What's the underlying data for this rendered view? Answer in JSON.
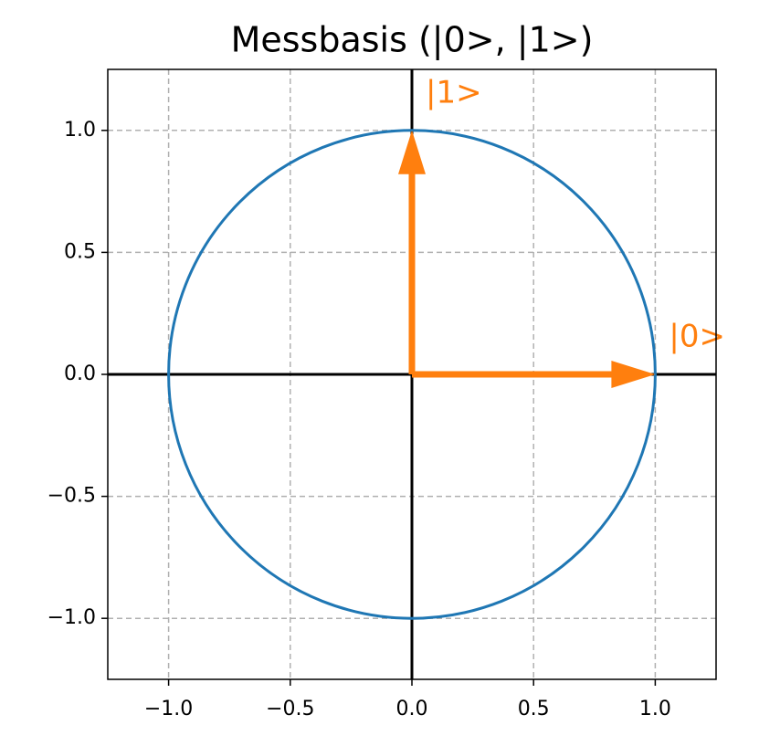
{
  "chart_data": {
    "type": "vector",
    "title": "Messbasis (|0>, |1>)",
    "circle": {
      "radius": 1,
      "color": "#1f77b4"
    },
    "vectors": [
      {
        "name": "|0>",
        "x": 1,
        "y": 0,
        "color": "#ff7f0e"
      },
      {
        "name": "|1>",
        "x": 0,
        "y": 1,
        "color": "#ff7f0e"
      }
    ],
    "xlim": [
      -1.25,
      1.25
    ],
    "ylim": [
      -1.25,
      1.25
    ],
    "xticks": [
      {
        "value": -1.0,
        "label": "−1.0"
      },
      {
        "value": -0.5,
        "label": "−0.5"
      },
      {
        "value": 0.0,
        "label": "0.0"
      },
      0.5,
      {
        "value": 1.0,
        "label": "1.0"
      }
    ],
    "yticks": [
      {
        "value": -1.0,
        "label": "−1.0"
      },
      {
        "value": -0.5,
        "label": "−0.5"
      },
      {
        "value": 0.0,
        "label": "0.0"
      },
      0.5,
      {
        "value": 1.0,
        "label": "1.0"
      }
    ],
    "grid": true,
    "zero_lines": true
  }
}
